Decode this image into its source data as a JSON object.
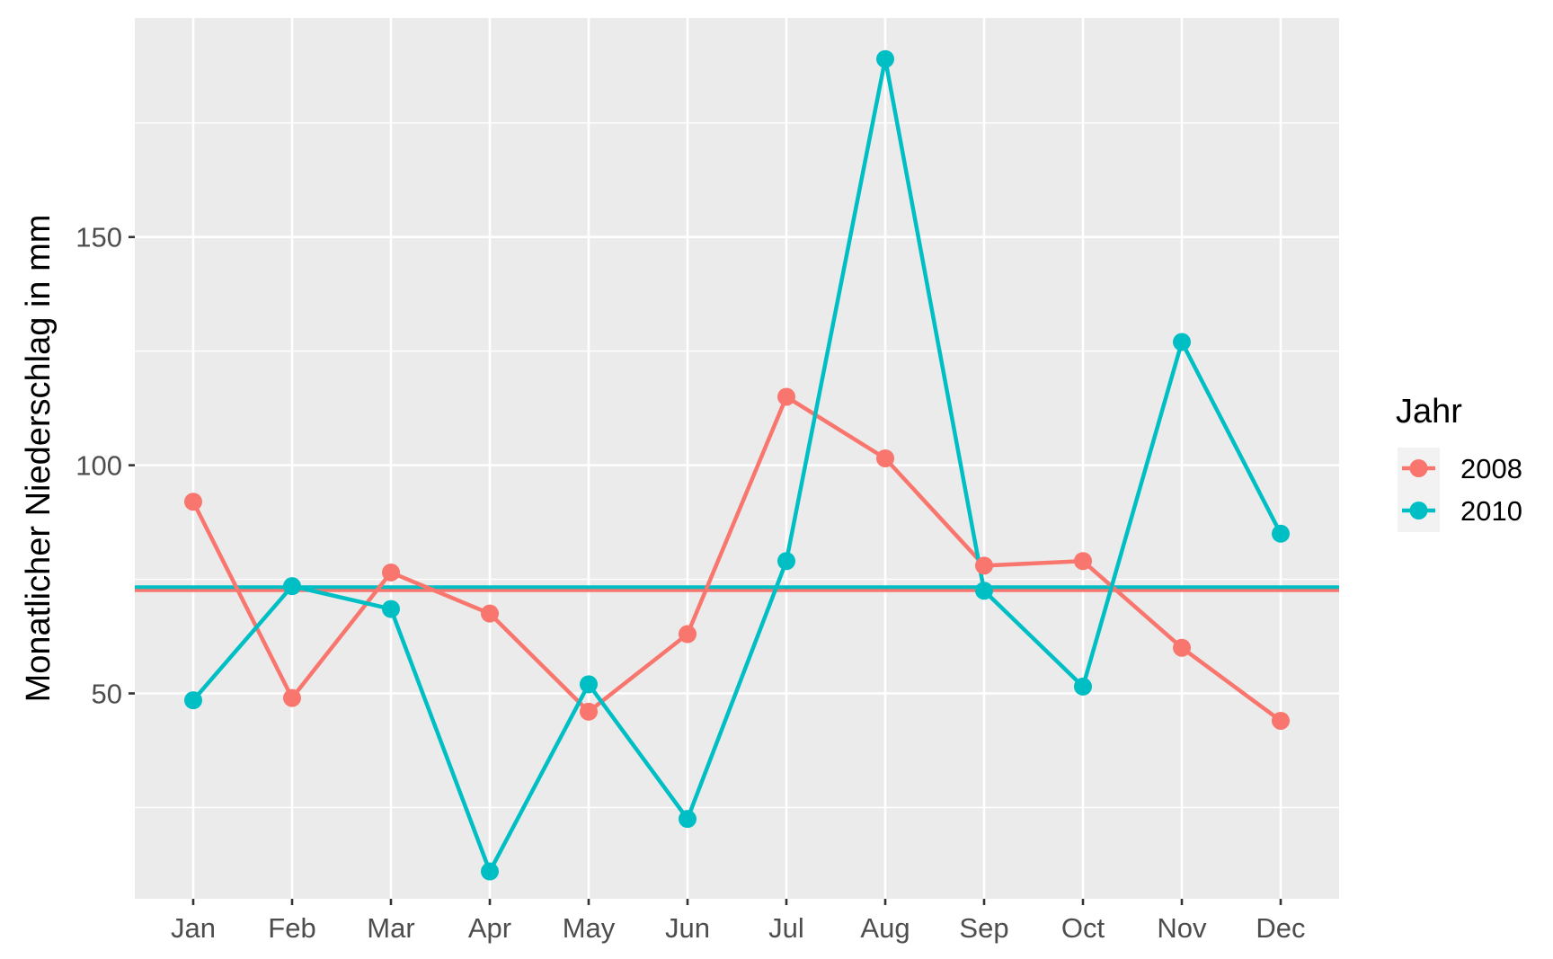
{
  "chart_data": {
    "type": "line",
    "title": "",
    "xlabel": "",
    "ylabel": "Monatlicher Niederschlag in mm",
    "categories": [
      "Jan",
      "Feb",
      "Mar",
      "Apr",
      "May",
      "Jun",
      "Jul",
      "Aug",
      "Sep",
      "Oct",
      "Nov",
      "Dec"
    ],
    "ylim": [
      5,
      198
    ],
    "yticks": [
      50,
      100,
      150
    ],
    "grid": true,
    "legend": {
      "title": "Jahr",
      "position": "right"
    },
    "series": [
      {
        "name": "2008",
        "color": "#F8766D",
        "values": [
          92,
          49,
          76.5,
          67.5,
          46,
          63,
          115,
          101.5,
          78,
          79,
          60,
          44
        ],
        "mean": 72.6
      },
      {
        "name": "2010",
        "color": "#00BFC4",
        "values": [
          48.5,
          73.5,
          68.5,
          11,
          52,
          22.5,
          79,
          189,
          72.5,
          51.5,
          127,
          85
        ],
        "mean": 73.3
      }
    ]
  }
}
